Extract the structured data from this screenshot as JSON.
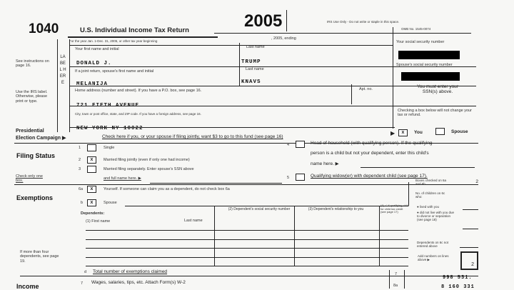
{
  "header": {
    "form_number": "1040",
    "title": "U.S. Individual Income Tax Return",
    "year": "2005",
    "irs_use": "IRS Use Only - Do not write or staple in this space.",
    "omb": "OMB No. 1545-0074",
    "tax_year_line": "For the year Jan. 1-Dec. 31, 2005, or other tax year beginning",
    "ending": ", 2005, ending"
  },
  "label": {
    "letters": "LABEL HERE",
    "see_instructions": "See instructions on page 16.",
    "use_irs": "Use the IRS label. Otherwise, please print or type.",
    "presidential": "Presidential",
    "election": "Election Campaign ▶"
  },
  "name": {
    "first_label": "Your first name and initial",
    "first_value": "DONALD J.",
    "last_label": "Last name",
    "last_value": "TRUMP",
    "spouse_first_label": "If a joint return, spouse's first name and initial",
    "spouse_first_value": "MELANIJA",
    "spouse_last_label": "Last name",
    "spouse_last_value": "KNAVS",
    "ssn_label": "Your social security number",
    "spouse_ssn_label": "Spouse's social security number"
  },
  "address": {
    "home_label": "Home address (number and street). If you have a P.O. box, see page 16.",
    "home_value": "721 FIFTH AVENUE",
    "apt_label": "Apt. no.",
    "city_label": "City, town or post office, state, and ZIP code. If you have a foreign address, see page 16.",
    "city_value": "NEW YORK   NY   10022",
    "must_enter": "You must enter your SSN(s) above.",
    "checking_note": "Checking a box below will not change your tax or refund."
  },
  "campaign": {
    "text": "Check here if you, or your spouse if filing jointly, want $3 to go to this fund (see page 16)",
    "you_label": "You",
    "spouse_label": "Spouse",
    "you_checked": true,
    "spouse_checked": false
  },
  "filing": {
    "title": "Filing Status",
    "note": "Check only one box.",
    "items": [
      {
        "num": "1",
        "label": "Single",
        "checked": false
      },
      {
        "num": "2",
        "label": "Married filing jointly (even if only one had income)",
        "checked": true
      },
      {
        "num": "3",
        "label": "Married filing separately. Enter spouse's SSN above",
        "checked": false
      },
      {
        "num": "",
        "label": "and full name here. ▶"
      },
      {
        "num": "4",
        "label": "Head of household (with qualifying person). If the qualifying",
        "checked": false
      },
      {
        "num": "",
        "label": "person is a child but not your dependent, enter this child's"
      },
      {
        "num": "",
        "label": "name here. ▶"
      },
      {
        "num": "5",
        "label": "Qualifying widow(er) with dependent child (see page 17).",
        "checked": false
      }
    ]
  },
  "exemptions": {
    "title": "Exemptions",
    "yourself": "Yourself. If someone can claim you as a dependent, do not check box 6a",
    "spouse": "Spouse",
    "dependents": "Dependents:",
    "col1": "(1) First name",
    "col1b": "Last name",
    "col2": "(2) Dependent's social security number",
    "col3": "(3) Dependent's relationship to you",
    "col4": "(4) ✓ if qualifying child for child tax credit (see page 17)",
    "more_than_four": "If more than four dependents, see page 19.",
    "boxes_checked": "Boxes checked on 6a and 6b",
    "boxes_checked_value": "2",
    "children": "No. of children on 6c who:",
    "lived": "● lived with you",
    "did_not_live": "● did not live with you due to divorce or separation (see page 18)",
    "not_entered": "Dependents on 6c not entered above",
    "add_numbers": "Add numbers on lines above ▶",
    "total_value": "2",
    "total_line": "Total number of exemptions claimed"
  },
  "income": {
    "title": "Income",
    "line7": "Wages, salaries, tips, etc. Attach Form(s) W-2",
    "line7_value": "998 531.",
    "line8_value": "8 160 331"
  }
}
